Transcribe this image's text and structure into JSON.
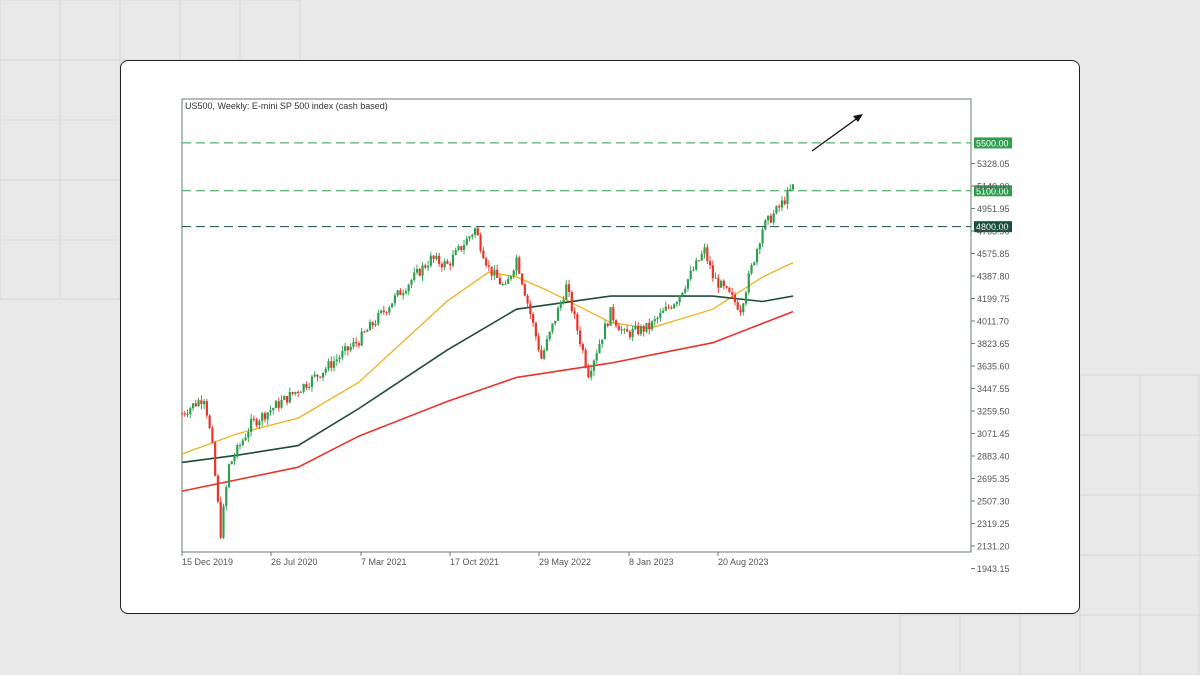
{
  "chart_data": {
    "type": "candlestick",
    "title": "US500, Weekly:  E-mini SP 500 index (cash based)",
    "x_tick_labels": [
      "15 Dec 2019",
      "26 Jul 2020",
      "7 Mar 2021",
      "17 Oct 2021",
      "29 May 2022",
      "8 Jan 2023",
      "20 Aug 2023"
    ],
    "y_tick_labels": [
      "5328.05",
      "5140.00",
      "4951.95",
      "4763.90",
      "4575.85",
      "4387.80",
      "4199.75",
      "4011.70",
      "3823.65",
      "3635.60",
      "3447.55",
      "3259.50",
      "3071.45",
      "2883.40",
      "2695.35",
      "2507.30",
      "2319.25",
      "2131.20",
      "1943.15"
    ],
    "ylim": [
      1900,
      5550
    ],
    "horizontal_levels": [
      {
        "label": "5500.00",
        "value": 5500,
        "color": "#2e9e4f"
      },
      {
        "label": "5100.00",
        "value": 5100,
        "color": "#2e9e4f"
      },
      {
        "label": "4800.00",
        "value": 4800,
        "color": "#16513a"
      }
    ],
    "price_path": [
      {
        "date": "2019-12-15",
        "close": 3240
      },
      {
        "date": "2020-02-10",
        "close": 3380
      },
      {
        "date": "2020-03-01",
        "close": 2950
      },
      {
        "date": "2020-03-22",
        "close": 2240
      },
      {
        "date": "2020-04-12",
        "close": 2800
      },
      {
        "date": "2020-06-07",
        "close": 3150
      },
      {
        "date": "2020-07-26",
        "close": 3270
      },
      {
        "date": "2020-09-27",
        "close": 3420
      },
      {
        "date": "2020-11-22",
        "close": 3560
      },
      {
        "date": "2021-03-07",
        "close": 3850
      },
      {
        "date": "2021-06-13",
        "close": 4230
      },
      {
        "date": "2021-09-05",
        "close": 4530
      },
      {
        "date": "2021-10-17",
        "close": 4480
      },
      {
        "date": "2021-12-26",
        "close": 4780
      },
      {
        "date": "2022-01-30",
        "close": 4450
      },
      {
        "date": "2022-03-13",
        "close": 4280
      },
      {
        "date": "2022-04-10",
        "close": 4540
      },
      {
        "date": "2022-06-12",
        "close": 3700
      },
      {
        "date": "2022-08-14",
        "close": 4300
      },
      {
        "date": "2022-10-09",
        "close": 3580
      },
      {
        "date": "2022-12-04",
        "close": 4080
      },
      {
        "date": "2023-01-08",
        "close": 3900
      },
      {
        "date": "2023-03-12",
        "close": 3960
      },
      {
        "date": "2023-05-21",
        "close": 4200
      },
      {
        "date": "2023-07-30",
        "close": 4600
      },
      {
        "date": "2023-08-20",
        "close": 4380
      },
      {
        "date": "2023-10-29",
        "close": 4120
      },
      {
        "date": "2023-12-24",
        "close": 4790
      },
      {
        "date": "2024-02-04",
        "close": 4960
      },
      {
        "date": "2024-03-10",
        "close": 5130
      }
    ],
    "moving_averages": [
      {
        "color": "#f2b01e",
        "points": [
          {
            "date": "2019-12-15",
            "value": 2900
          },
          {
            "date": "2020-05-03",
            "value": 3070
          },
          {
            "date": "2020-10-04",
            "value": 3200
          },
          {
            "date": "2021-03-07",
            "value": 3500
          },
          {
            "date": "2021-10-17",
            "value": 4180
          },
          {
            "date": "2022-01-30",
            "value": 4420
          },
          {
            "date": "2022-04-10",
            "value": 4380
          },
          {
            "date": "2022-06-26",
            "value": 4270
          },
          {
            "date": "2022-12-04",
            "value": 4000
          },
          {
            "date": "2023-03-12",
            "value": 3950
          },
          {
            "date": "2023-08-20",
            "value": 4110
          },
          {
            "date": "2023-12-24",
            "value": 4380
          },
          {
            "date": "2024-03-10",
            "value": 4500
          }
        ]
      },
      {
        "color": "#1e4d36",
        "points": [
          {
            "date": "2019-12-15",
            "value": 2830
          },
          {
            "date": "2020-05-03",
            "value": 2890
          },
          {
            "date": "2020-10-04",
            "value": 2970
          },
          {
            "date": "2021-03-07",
            "value": 3280
          },
          {
            "date": "2021-10-17",
            "value": 3770
          },
          {
            "date": "2022-04-10",
            "value": 4110
          },
          {
            "date": "2022-12-04",
            "value": 4220
          },
          {
            "date": "2023-08-20",
            "value": 4220
          },
          {
            "date": "2023-12-24",
            "value": 4175
          },
          {
            "date": "2024-03-10",
            "value": 4220
          }
        ]
      },
      {
        "color": "#e8352a",
        "points": [
          {
            "date": "2019-12-15",
            "value": 2590
          },
          {
            "date": "2020-10-04",
            "value": 2790
          },
          {
            "date": "2021-03-07",
            "value": 3050
          },
          {
            "date": "2021-10-17",
            "value": 3340
          },
          {
            "date": "2022-04-10",
            "value": 3540
          },
          {
            "date": "2022-12-04",
            "value": 3660
          },
          {
            "date": "2023-08-20",
            "value": 3830
          },
          {
            "date": "2024-03-10",
            "value": 4090
          }
        ]
      }
    ],
    "colors": {
      "up": "#2e9e4f",
      "down": "#e8352a",
      "frame": "#6b7b72",
      "axis_text": "#555555"
    },
    "grid": false,
    "annotation": "upward arrow"
  }
}
